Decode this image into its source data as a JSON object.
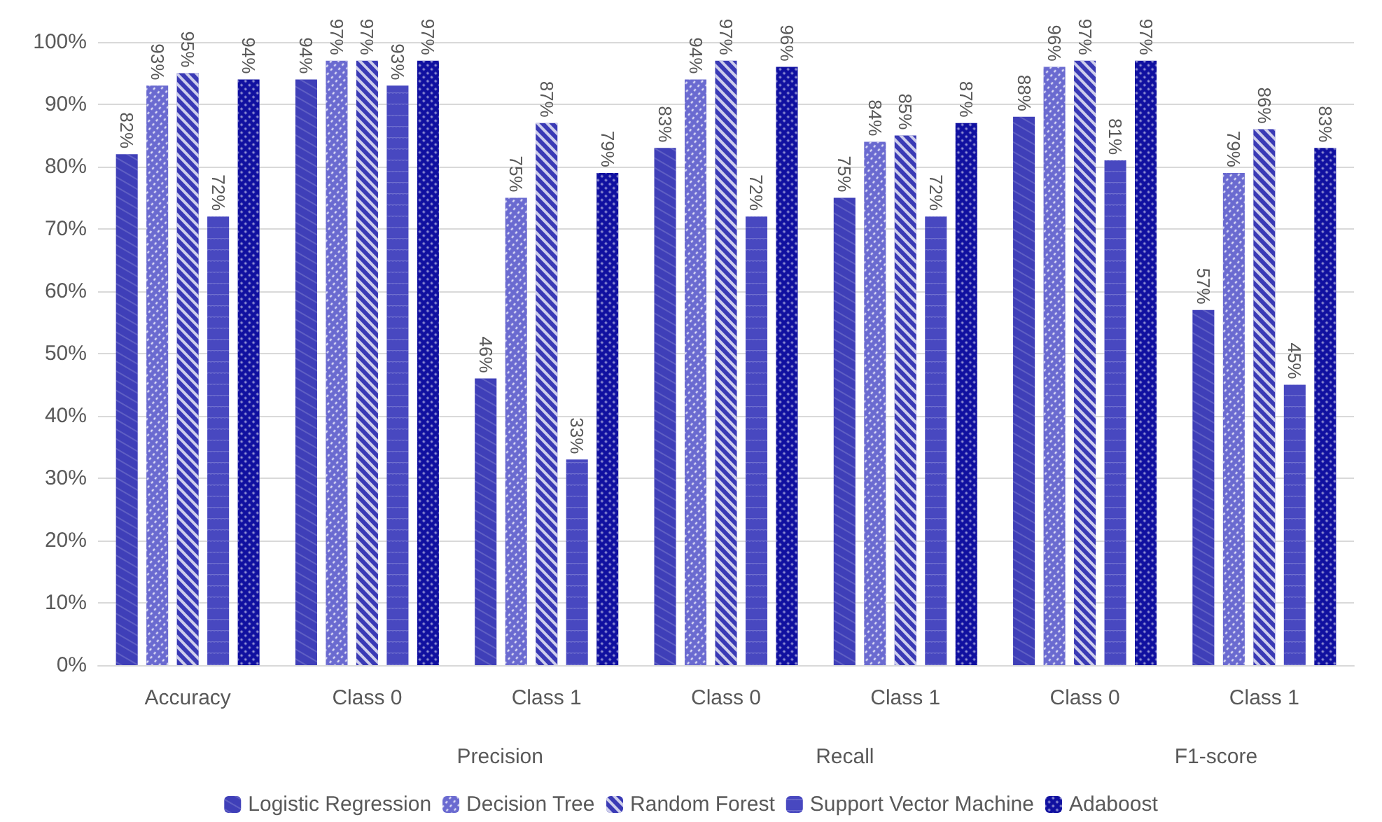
{
  "chart_data": {
    "type": "bar",
    "categories": [
      "Accuracy",
      "Class 0",
      "Class 1",
      "Class 0",
      "Class 1",
      "Class 0",
      "Class 1"
    ],
    "annotations": [
      "Precision",
      "Recall",
      "F1-score"
    ],
    "series": [
      {
        "name": "Logistic Regression",
        "color": "#3f3fb8",
        "values": [
          82,
          94,
          46,
          83,
          75,
          88,
          57
        ],
        "value_labels": [
          "82%",
          "94%",
          "46%",
          "83%",
          "75%",
          "88%",
          "57%"
        ]
      },
      {
        "name": "Decision Tree",
        "color": "#6a6ad0",
        "values": [
          93,
          97,
          75,
          94,
          84,
          96,
          79
        ],
        "value_labels": [
          "93%",
          "97%",
          "75%",
          "94%",
          "84%",
          "96%",
          "79%"
        ]
      },
      {
        "name": "Random Forest",
        "color": "#3a3ab5",
        "values": [
          95,
          97,
          87,
          97,
          85,
          97,
          86
        ],
        "value_labels": [
          "95%",
          "97%",
          "87%",
          "97%",
          "85%",
          "97%",
          "86%"
        ]
      },
      {
        "name": "Support Vector Machine",
        "color": "#4848c0",
        "values": [
          72,
          93,
          33,
          72,
          72,
          81,
          45
        ],
        "value_labels": [
          "72%",
          "93%",
          "33%",
          "72%",
          "72%",
          "81%",
          "45%"
        ]
      },
      {
        "name": "Adaboost",
        "color": "#1010a0",
        "values": [
          94,
          97,
          79,
          96,
          87,
          97,
          83
        ],
        "value_labels": [
          "94%",
          "97%",
          "79%",
          "96%",
          "87%",
          "97%",
          "83%"
        ]
      }
    ],
    "ylim": [
      0,
      100
    ],
    "yticks": [
      {
        "value": 0,
        "label": "0%"
      },
      {
        "value": 10,
        "label": "10%"
      },
      {
        "value": 20,
        "label": "20%"
      },
      {
        "value": 30,
        "label": "30%"
      },
      {
        "value": 40,
        "label": "40%"
      },
      {
        "value": 50,
        "label": "50%"
      },
      {
        "value": 60,
        "label": "60%"
      },
      {
        "value": 70,
        "label": "70%"
      },
      {
        "value": 80,
        "label": "80%"
      },
      {
        "value": 90,
        "label": "90%"
      },
      {
        "value": 100,
        "label": "100%"
      }
    ],
    "grid": "y",
    "legend": "bottom"
  }
}
